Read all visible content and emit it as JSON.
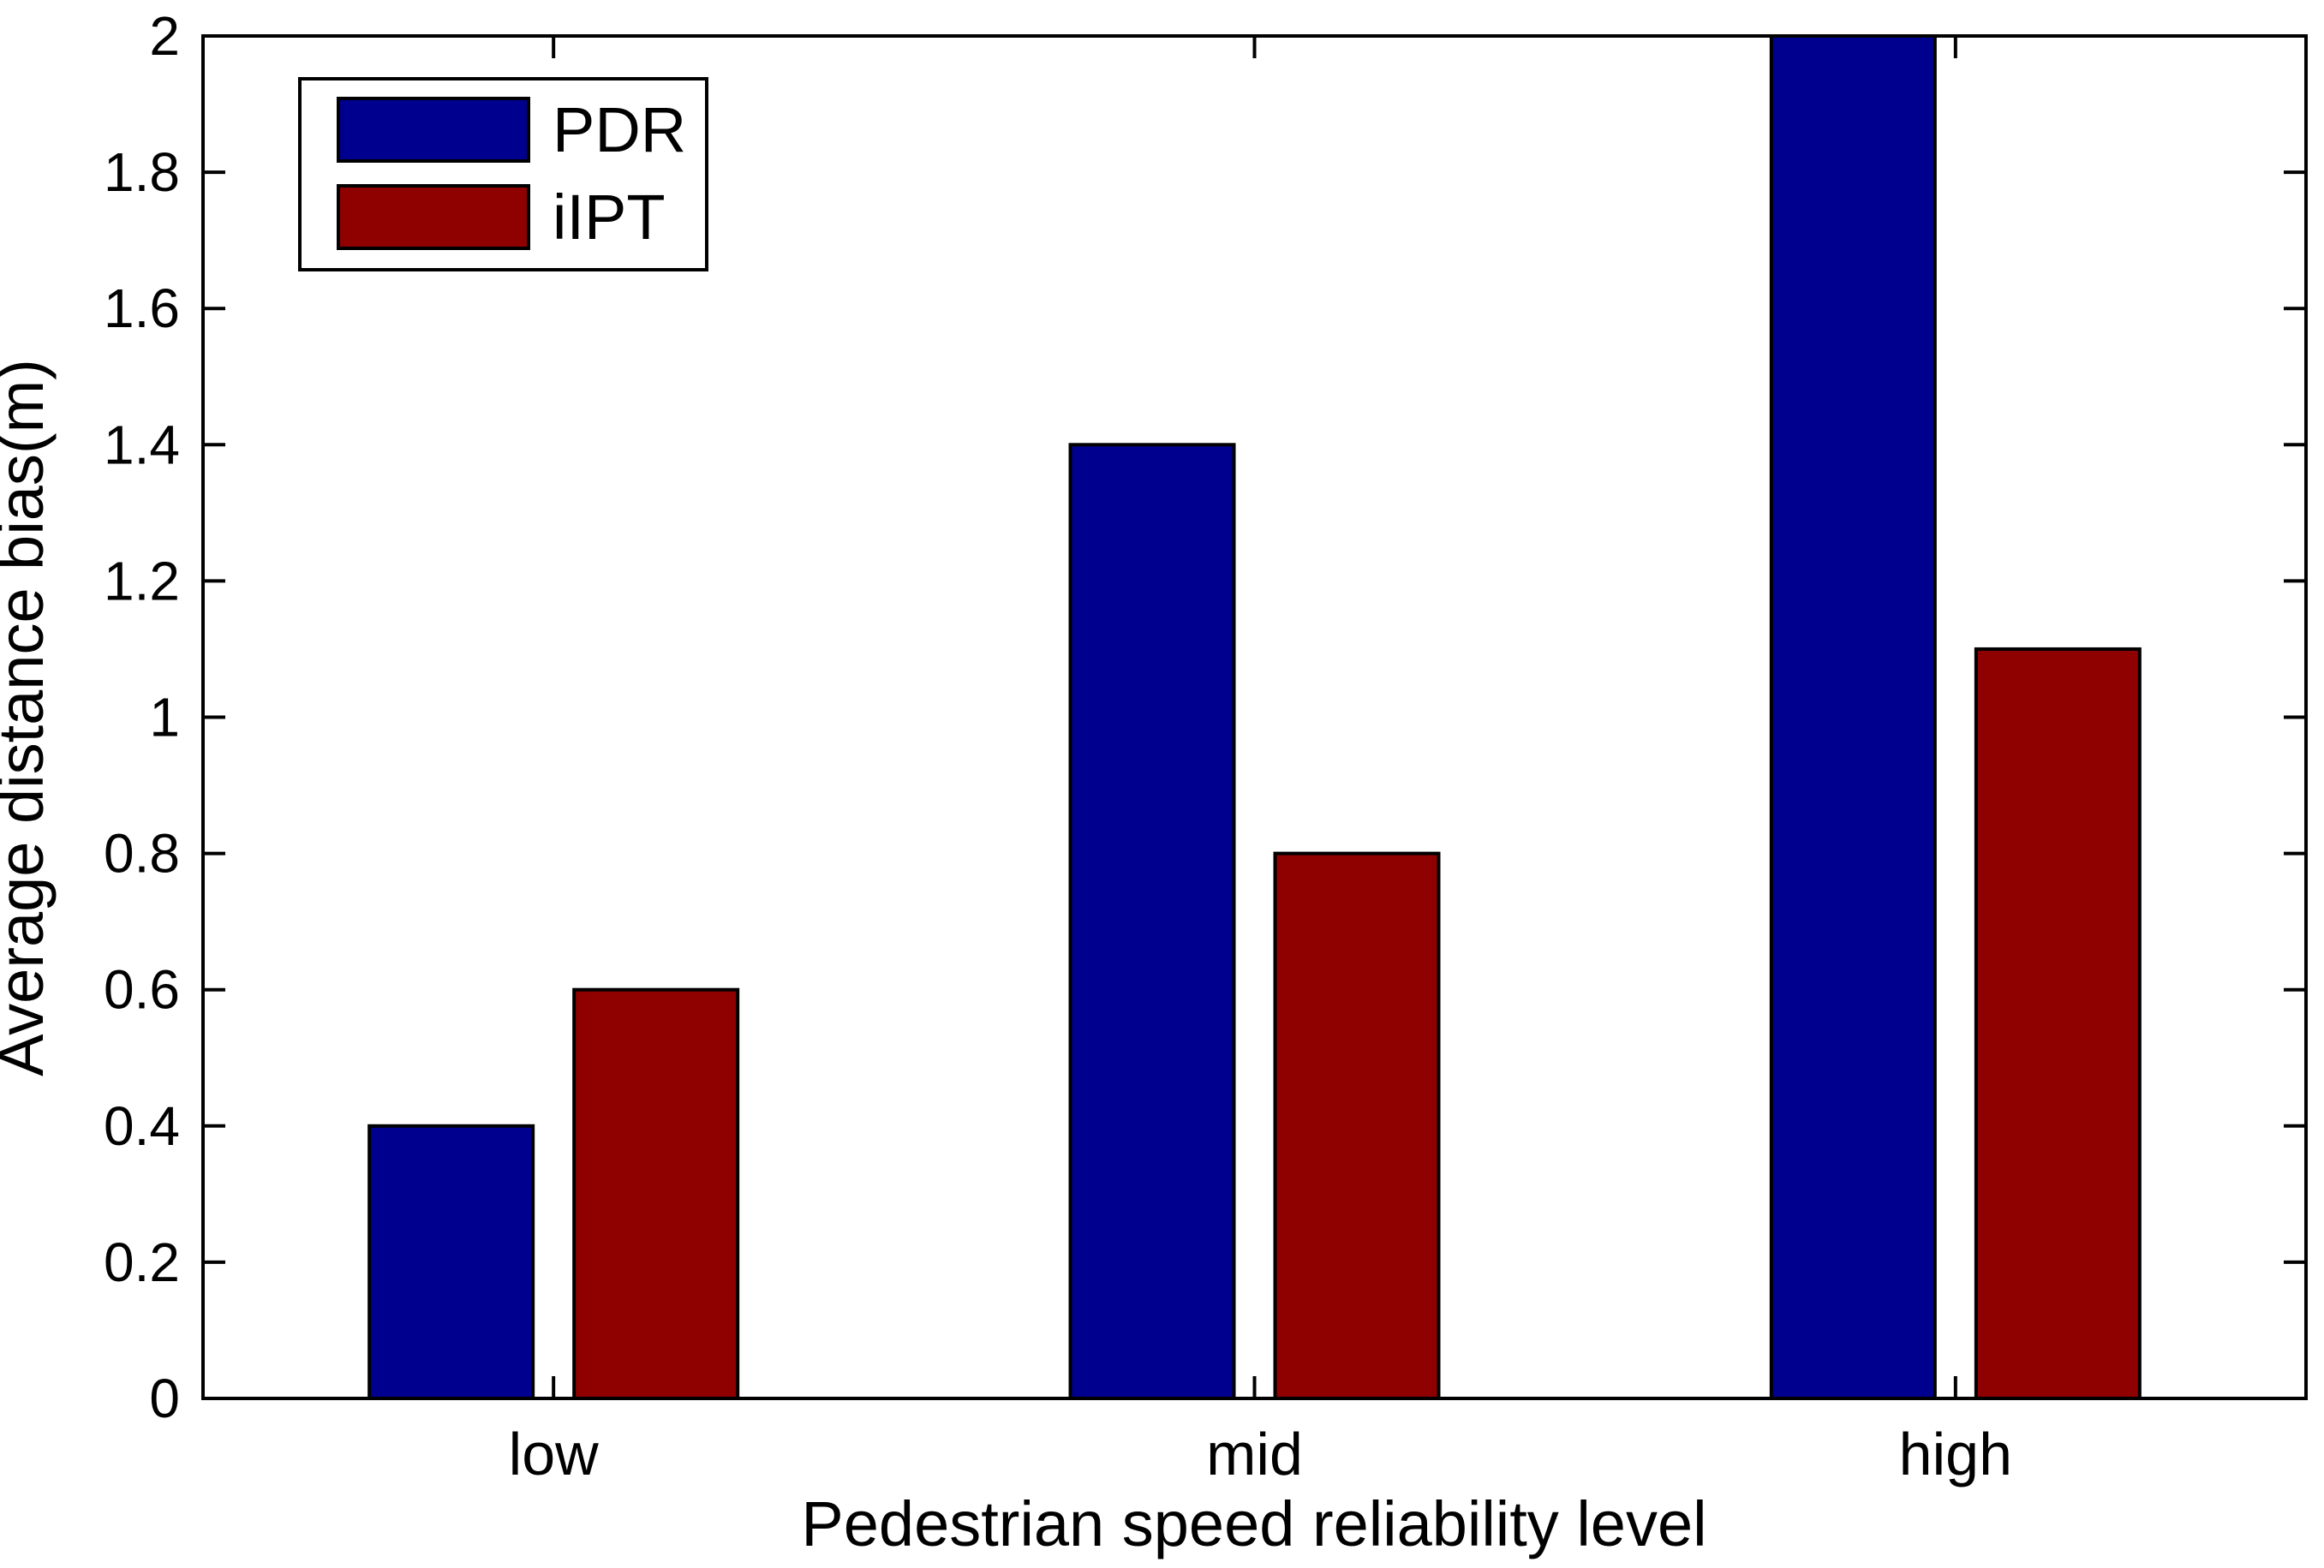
{
  "figure": {
    "background": "#FFFFFF",
    "axis_color": "#000000",
    "text_color": "#000000"
  },
  "chart_data": {
    "type": "bar",
    "title": "",
    "xlabel": "Pedestrian speed reliability level",
    "ylabel": "Average distance bias(m)",
    "categories": [
      "low",
      "mid",
      "high"
    ],
    "series": [
      {
        "name": "PDR",
        "color": "#00008F",
        "values": [
          0.4,
          1.4,
          2.0
        ]
      },
      {
        "name": "iIPT",
        "color": "#8F0000",
        "values": [
          0.6,
          0.8,
          1.1
        ]
      }
    ],
    "ylim": [
      0,
      2
    ],
    "ytick_step": 0.2,
    "ytick_labels": [
      "0",
      "0.2",
      "0.4",
      "0.6",
      "0.8",
      "1",
      "1.2",
      "1.4",
      "1.6",
      "1.8",
      "2"
    ],
    "grid": false,
    "legend": {
      "position": "top-left",
      "entries": [
        "PDR",
        "iIPT"
      ]
    }
  }
}
